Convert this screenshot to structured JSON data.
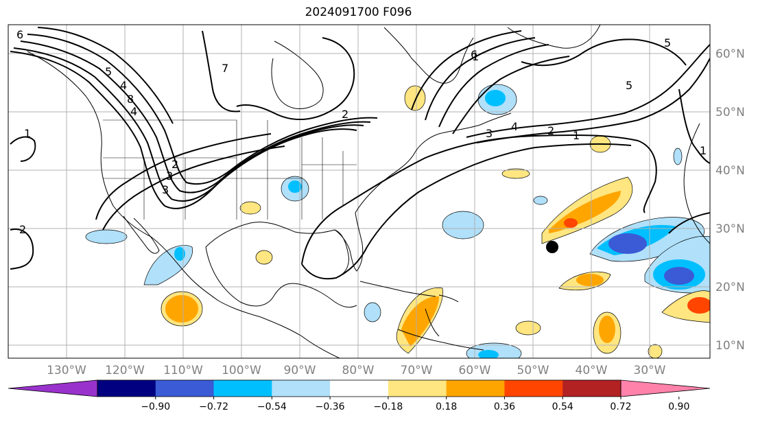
{
  "title": "2024091700 F096",
  "map": {
    "lon_labels": [
      "130°W",
      "120°W",
      "110°W",
      "100°W",
      "90°W",
      "80°W",
      "70°W",
      "60°W",
      "50°W",
      "40°W",
      "30°W"
    ],
    "lat_labels": [
      "60°N",
      "50°N",
      "40°N",
      "30°N",
      "20°N",
      "10°N"
    ],
    "marker": {
      "lon": -47,
      "lat": 27
    },
    "contour_labels": [
      "6",
      "5",
      "4",
      "3",
      "2",
      "1",
      "2",
      "3",
      "4",
      "5",
      "6",
      "7",
      "8",
      "2",
      "1",
      "1",
      "5",
      "4",
      "3",
      "2",
      "1"
    ]
  },
  "colorbar": {
    "ticks": [
      "−0.90",
      "−0.72",
      "−0.54",
      "−0.36",
      "−0.18",
      "0.18",
      "0.36",
      "0.54",
      "0.72",
      "0.90"
    ],
    "colors": [
      "#9932cc",
      "#000080",
      "#3b5bd6",
      "#00bfff",
      "#b0e0fa",
      "#ffffff",
      "#ffe680",
      "#ffa500",
      "#ff4500",
      "#b22222",
      "#ff82ab"
    ]
  },
  "colors": {
    "grid": "#b0b0b0",
    "coast": "#000000",
    "land": "#ffffff"
  }
}
